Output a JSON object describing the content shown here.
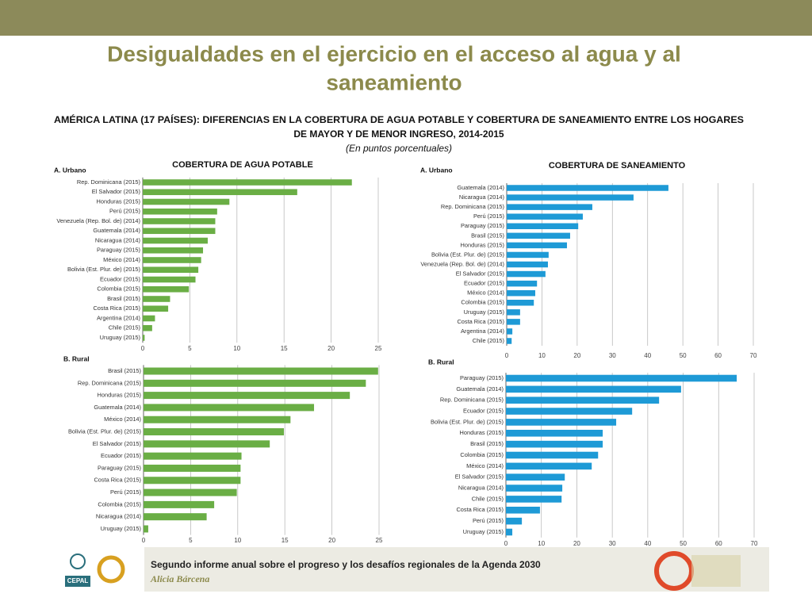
{
  "slide_title": [
    "Desigualdades en el ejercicio en el acceso al agua y al",
    "saneamiento"
  ],
  "figure_title": [
    "AMÉRICA LATINA (17 PAÍSES): DIFERENCIAS EN LA COBERTURA DE AGUA POTABLE Y COBERTURA DE SANEAMIENTO ENTRE LOS HOGARES",
    "DE MAYOR Y DE MENOR INGRESO, 2014-2015"
  ],
  "figure_subtitle": "(En puntos porcentuales)",
  "footer": {
    "line1": "Segundo informe anual sobre el progreso y los desafíos regionales de la Agenda 2030",
    "line2": "Alicia Bárcena",
    "logo": "CEPAL"
  },
  "chart_data": [
    {
      "type": "hbar",
      "title": "COBERTURA DE AGUA POTABLE",
      "subtitle": "A. Urbano",
      "color": "#6aae45",
      "categories": [
        "Rep. Dominicana (2015)",
        "El Salvador (2015)",
        "Honduras (2015)",
        "Perú (2015)",
        "Venezuela (Rep. Bol. de) (2014)",
        "Guatemala (2014)",
        "Nicaragua (2014)",
        "Paraguay (2015)",
        "México (2014)",
        "Bolivia (Est. Plur. de) (2015)",
        "Ecuador (2015)",
        "Colombia (2015)",
        "Brasil (2015)",
        "Costa Rica (2015)",
        "Argentina (2014)",
        "Chile (2015)",
        "Uruguay (2015)"
      ],
      "values": [
        22.2,
        16.4,
        9.2,
        7.9,
        7.7,
        7.7,
        6.9,
        6.4,
        6.2,
        5.9,
        5.6,
        4.9,
        2.9,
        2.7,
        1.3,
        1.0,
        0.2
      ],
      "xlim": [
        0,
        25
      ],
      "xticks": [
        0,
        5,
        10,
        15,
        20,
        25
      ],
      "grid": true
    },
    {
      "type": "hbar",
      "title": "COBERTURA DE SANEAMIENTO",
      "subtitle": "A. Urbano",
      "color": "#1e9ad6",
      "categories": [
        "Guatemala (2014)",
        "Nicaragua (2014)",
        "Rep. Dominicana (2015)",
        "Perú (2015)",
        "Paraguay (2015)",
        "Brasil (2015)",
        "Honduras (2015)",
        "Bolivia (Est. Plur. de) (2015)",
        "Venezuela (Rep. Bol. de) (2014)",
        "El Salvador (2015)",
        "Ecuador (2015)",
        "México (2014)",
        "Colombia (2015)",
        "Uruguay (2015)",
        "Costa Rica (2015)",
        "Argentina (2014)",
        "Chile (2015)"
      ],
      "values": [
        45.9,
        36.0,
        24.3,
        21.6,
        20.3,
        18.0,
        17.1,
        11.9,
        11.7,
        11.0,
        8.6,
        8.1,
        7.7,
        3.8,
        3.8,
        1.6,
        1.4
      ],
      "xlim": [
        0,
        70
      ],
      "xticks": [
        0,
        10,
        20,
        30,
        40,
        50,
        60,
        70
      ],
      "grid": true
    },
    {
      "type": "hbar",
      "subtitle": "B. Rural",
      "color": "#6aae45",
      "categories": [
        "Brasil (2015)",
        "Rep. Dominicana (2015)",
        "Honduras (2015)",
        "Guatemala (2014)",
        "México (2014)",
        "Bolivia (Est. Plur. de) (2015)",
        "El Salvador (2015)",
        "Ecuador (2015)",
        "Paraguay (2015)",
        "Costa Rica (2015)",
        "Perú (2015)",
        "Colombia (2015)",
        "Nicaragua (2014)",
        "Uruguay (2015)"
      ],
      "values": [
        24.9,
        23.6,
        21.9,
        18.1,
        15.6,
        14.9,
        13.4,
        10.4,
        10.3,
        10.3,
        9.9,
        7.5,
        6.7,
        0.5
      ],
      "xlim": [
        0,
        25
      ],
      "xticks": [
        0,
        5,
        10,
        15,
        20,
        25
      ],
      "grid": true
    },
    {
      "type": "hbar",
      "subtitle": "B. Rural",
      "color": "#1e9ad6",
      "categories": [
        "Paraguay (2015)",
        "Guatemala (2014)",
        "Rep. Dominicana (2015)",
        "Ecuador (2015)",
        "Bolivia (Est. Plur. de) (2015)",
        "Honduras (2015)",
        "Brasil (2015)",
        "Colombia (2015)",
        "México (2014)",
        "El Salvador (2015)",
        "Nicaragua (2014)",
        "Chile (2015)",
        "Costa Rica (2015)",
        "Perú (2015)",
        "Uruguay (2015)"
      ],
      "values": [
        65.1,
        49.4,
        43.2,
        35.6,
        31.1,
        27.3,
        27.3,
        26.0,
        24.2,
        16.6,
        15.9,
        15.7,
        9.6,
        4.5,
        1.8
      ],
      "xlim": [
        0,
        70
      ],
      "xticks": [
        0,
        10,
        20,
        30,
        40,
        50,
        60,
        70
      ],
      "grid": true
    }
  ]
}
